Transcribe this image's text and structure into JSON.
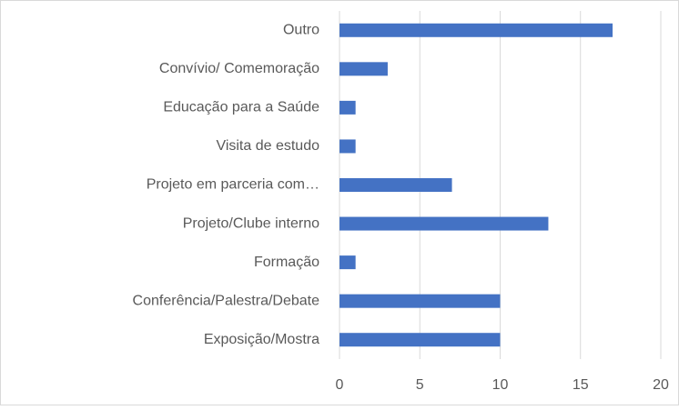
{
  "chart_data": {
    "type": "bar",
    "orientation": "horizontal",
    "categories": [
      "Outro",
      "Convívio/ Comemoração",
      "Educação para a Saúde",
      "Visita de estudo",
      "Projeto em parceria com…",
      "Projeto/Clube interno",
      "Formação",
      "Conferência/Palestra/Debate",
      "Exposição/Mostra"
    ],
    "values": [
      17,
      3,
      1,
      1,
      7,
      13,
      1,
      10,
      10
    ],
    "color": "#4472c4",
    "xlim": [
      0,
      20
    ],
    "xticks": [
      0,
      5,
      10,
      15,
      20
    ],
    "grid": true
  }
}
